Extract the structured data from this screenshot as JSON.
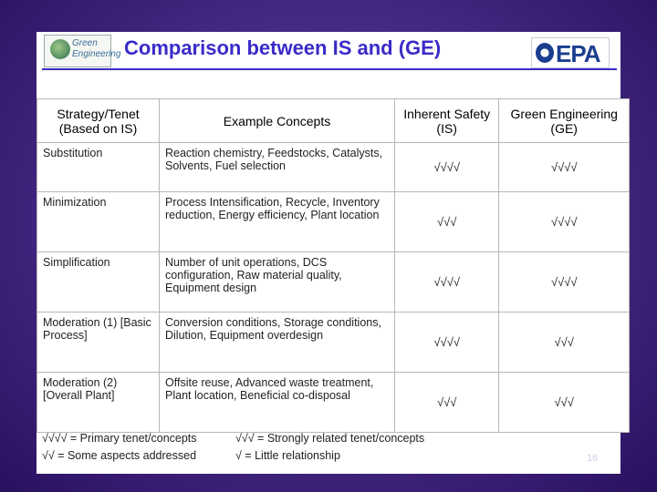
{
  "header": {
    "logo_line1": "Green",
    "logo_line2": "Engineering",
    "title": "Comparison between IS and (GE)",
    "epa_label": "EPA"
  },
  "table": {
    "columns": [
      "Strategy/Tenet (Based on IS)",
      "Example Concepts",
      "Inherent Safety (IS)",
      "Green Engineering (GE)"
    ],
    "rows": [
      {
        "strategy": "Substitution",
        "concepts": "Reaction chemistry, Feedstocks, Catalysts, Solvents, Fuel selection",
        "is": "√√√√",
        "ge": "√√√√"
      },
      {
        "strategy": "Minimization",
        "concepts": "Process Intensification, Recycle, Inventory reduction, Energy efficiency, Plant location",
        "is": "√√√",
        "ge": "√√√√"
      },
      {
        "strategy": "Simplification",
        "concepts": "Number of unit operations, DCS configuration, Raw material quality, Equipment design",
        "is": "√√√√",
        "ge": "√√√√"
      },
      {
        "strategy": "Moderation (1) [Basic Process]",
        "concepts": "Conversion conditions, Storage conditions, Dilution, Equipment overdesign",
        "is": "√√√√",
        "ge": "√√√"
      },
      {
        "strategy": "Moderation (2) [Overall Plant]",
        "concepts": "Offsite reuse, Advanced waste treatment, Plant location, Beneficial co-disposal",
        "is": "√√√",
        "ge": "√√√"
      }
    ]
  },
  "legend": {
    "l1": "√√√√ = Primary tenet/concepts",
    "l2": "√√ = Some aspects addressed",
    "l3": "√√√ = Strongly related tenet/concepts",
    "l4": "√ = Little relationship"
  },
  "footer": {
    "page_number": "16"
  }
}
